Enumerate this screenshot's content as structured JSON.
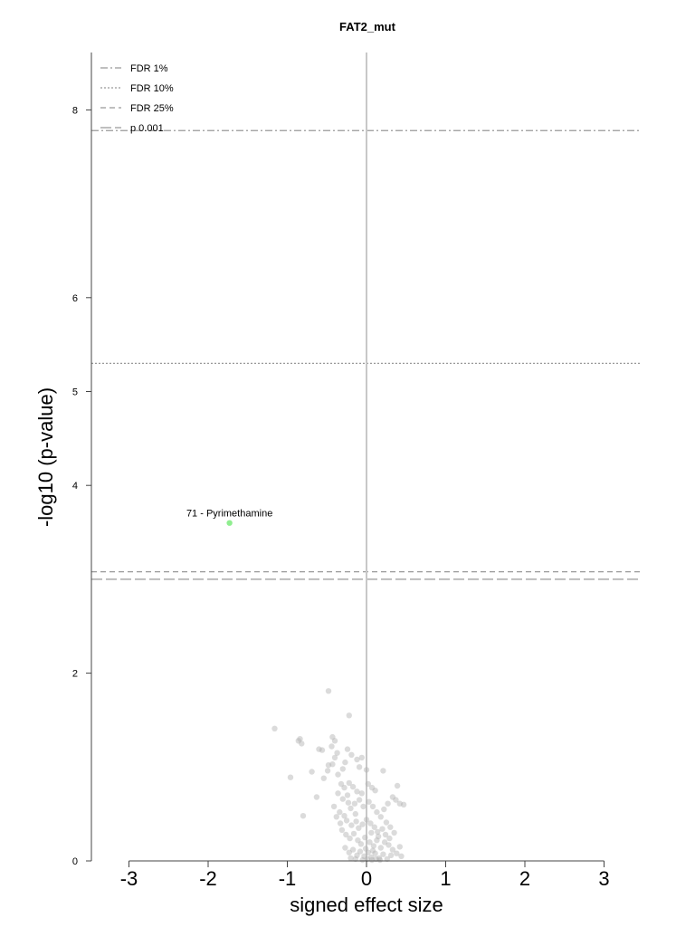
{
  "chart_data": {
    "type": "scatter",
    "title": "FAT2_mut",
    "xlabel": "signed effect size",
    "ylabel": "-log10 (p-value)",
    "xlim": [
      -3.4,
      3.5
    ],
    "ylim": [
      0,
      8.7
    ],
    "xticks": [
      "-3",
      "-2",
      "-1",
      "0",
      "1",
      "2",
      "3"
    ],
    "yticks": [
      "0",
      "2",
      "4",
      "5",
      "6",
      "8"
    ],
    "grid": false,
    "legend_position": "top-left",
    "colors": {
      "points": "#b0b0b0",
      "highlight": "#90ee90",
      "threshold": "#999999",
      "zero_line": "#c8c8c8",
      "axis": "#444444"
    },
    "thresholds": [
      {
        "name": "FDR 1%",
        "y": 7.78,
        "style": "dashdot"
      },
      {
        "name": "FDR 10%",
        "y": 5.3,
        "style": "dotted"
      },
      {
        "name": "FDR 25%",
        "y": 3.08,
        "style": "dashed"
      },
      {
        "name": "p 0.001",
        "y": 3.0,
        "style": "longdash"
      }
    ],
    "highlight": [
      {
        "x": -1.73,
        "y": 3.6,
        "label": "71 - Pyrimethamine"
      }
    ],
    "points": [
      [
        -1.16,
        1.41
      ],
      [
        -0.48,
        1.81
      ],
      [
        -0.22,
        1.55
      ],
      [
        -0.86,
        1.28
      ],
      [
        -0.82,
        1.25
      ],
      [
        -0.84,
        1.3
      ],
      [
        -0.6,
        1.19
      ],
      [
        -0.56,
        1.18
      ],
      [
        -0.43,
        1.32
      ],
      [
        -0.4,
        1.28
      ],
      [
        -0.44,
        1.22
      ],
      [
        -0.37,
        1.15
      ],
      [
        -0.4,
        1.1
      ],
      [
        -0.24,
        1.19
      ],
      [
        -0.19,
        1.13
      ],
      [
        -0.27,
        1.05
      ],
      [
        -0.3,
        0.98
      ],
      [
        -0.43,
        1.03
      ],
      [
        -0.48,
        1.02
      ],
      [
        -0.49,
        0.96
      ],
      [
        -0.69,
        0.95
      ],
      [
        -0.54,
        0.88
      ],
      [
        -0.36,
        0.92
      ],
      [
        -0.12,
        1.08
      ],
      [
        -0.06,
        1.1
      ],
      [
        -0.09,
        1.0
      ],
      [
        0.0,
        0.97
      ],
      [
        0.21,
        0.96
      ],
      [
        -0.96,
        0.89
      ],
      [
        -0.63,
        0.68
      ],
      [
        -0.8,
        0.48
      ],
      [
        -0.32,
        0.82
      ],
      [
        -0.28,
        0.78
      ],
      [
        -0.22,
        0.83
      ],
      [
        -0.17,
        0.79
      ],
      [
        -0.12,
        0.74
      ],
      [
        -0.06,
        0.72
      ],
      [
        0.02,
        0.82
      ],
      [
        0.07,
        0.78
      ],
      [
        0.11,
        0.75
      ],
      [
        -0.36,
        0.72
      ],
      [
        -0.3,
        0.66
      ],
      [
        -0.23,
        0.62
      ],
      [
        -0.2,
        0.56
      ],
      [
        -0.15,
        0.61
      ],
      [
        -0.09,
        0.65
      ],
      [
        -0.04,
        0.58
      ],
      [
        0.03,
        0.63
      ],
      [
        0.08,
        0.58
      ],
      [
        0.13,
        0.52
      ],
      [
        0.18,
        0.47
      ],
      [
        0.22,
        0.55
      ],
      [
        0.27,
        0.61
      ],
      [
        0.33,
        0.68
      ],
      [
        0.39,
        0.8
      ],
      [
        0.37,
        0.65
      ],
      [
        0.42,
        0.61
      ],
      [
        0.47,
        0.6
      ],
      [
        -0.41,
        0.58
      ],
      [
        -0.34,
        0.52
      ],
      [
        -0.28,
        0.48
      ],
      [
        -0.25,
        0.43
      ],
      [
        -0.19,
        0.38
      ],
      [
        -0.13,
        0.42
      ],
      [
        -0.1,
        0.35
      ],
      [
        -0.05,
        0.39
      ],
      [
        0.0,
        0.44
      ],
      [
        0.05,
        0.4
      ],
      [
        0.1,
        0.36
      ],
      [
        0.14,
        0.31
      ],
      [
        0.2,
        0.34
      ],
      [
        0.25,
        0.41
      ],
      [
        0.3,
        0.36
      ],
      [
        0.35,
        0.3
      ],
      [
        -0.31,
        0.33
      ],
      [
        -0.26,
        0.28
      ],
      [
        -0.21,
        0.24
      ],
      [
        -0.16,
        0.29
      ],
      [
        -0.11,
        0.22
      ],
      [
        -0.07,
        0.18
      ],
      [
        -0.02,
        0.25
      ],
      [
        0.04,
        0.2
      ],
      [
        0.09,
        0.16
      ],
      [
        0.13,
        0.22
      ],
      [
        0.18,
        0.14
      ],
      [
        0.23,
        0.2
      ],
      [
        0.28,
        0.17
      ],
      [
        0.33,
        0.12
      ],
      [
        0.38,
        0.08
      ],
      [
        0.42,
        0.15
      ],
      [
        0.44,
        0.05
      ],
      [
        -0.27,
        0.14
      ],
      [
        -0.22,
        0.09
      ],
      [
        -0.17,
        0.12
      ],
      [
        -0.12,
        0.06
      ],
      [
        -0.08,
        0.1
      ],
      [
        -0.03,
        0.05
      ],
      [
        0.02,
        0.09
      ],
      [
        0.06,
        0.04
      ],
      [
        0.11,
        0.08
      ],
      [
        0.16,
        0.03
      ],
      [
        0.21,
        0.07
      ],
      [
        0.26,
        0.02
      ],
      [
        0.31,
        0.06
      ],
      [
        -0.2,
        0.03
      ],
      [
        -0.14,
        0.02
      ],
      [
        -0.05,
        0.01
      ],
      [
        0.01,
        0.02
      ],
      [
        0.07,
        0.01
      ],
      [
        0.12,
        0.02
      ],
      [
        0.17,
        0.01
      ],
      [
        -0.33,
        0.4
      ],
      [
        -0.38,
        0.47
      ],
      [
        -0.24,
        0.7
      ],
      [
        0.06,
        0.3
      ],
      [
        0.15,
        0.26
      ],
      [
        -0.01,
        0.13
      ],
      [
        0.08,
        0.11
      ],
      [
        -0.14,
        0.5
      ],
      [
        0.24,
        0.28
      ],
      [
        0.29,
        0.24
      ]
    ]
  }
}
